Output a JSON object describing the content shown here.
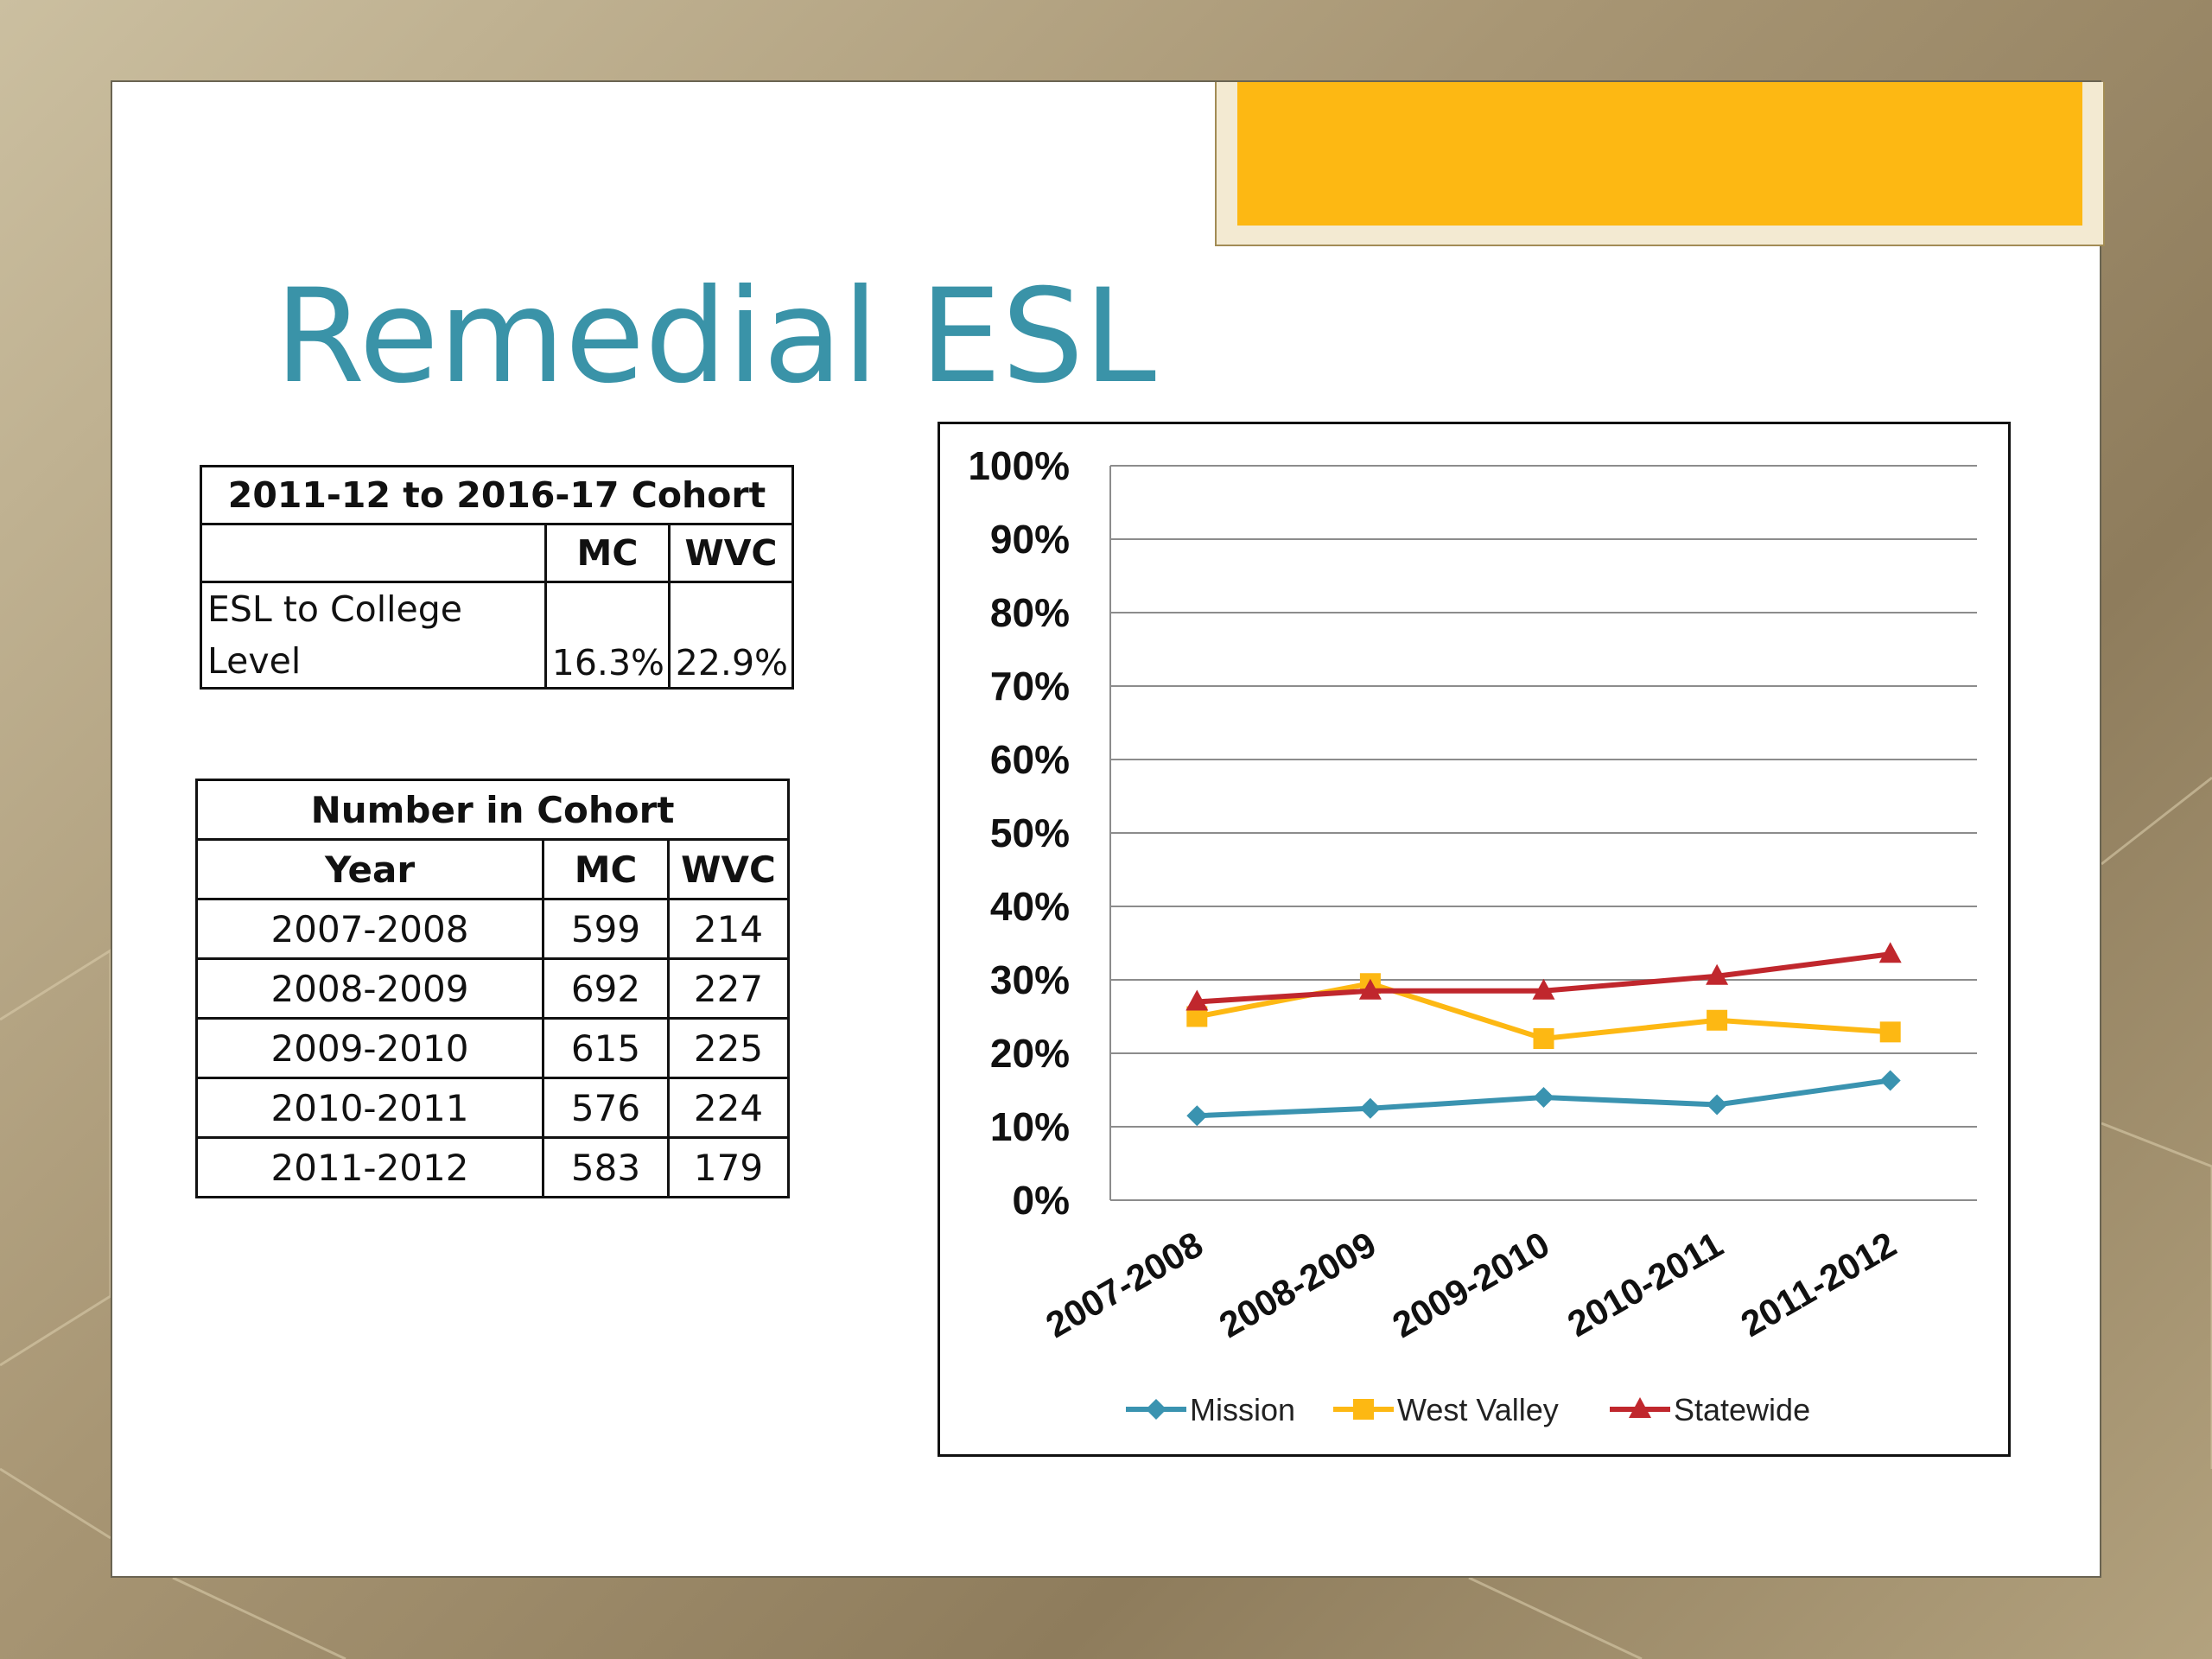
{
  "slide": {
    "title": "Remedial ESL"
  },
  "table_completion": {
    "title": "2011-12 to 2016-17 Cohort",
    "headers": [
      "",
      "MC",
      "WVC"
    ],
    "row_label": "ESL to College Level",
    "mc": "16.3%",
    "wvc": "22.9%"
  },
  "table_cohort": {
    "title": "Number in Cohort",
    "headers": [
      "Year",
      "MC",
      "WVC"
    ],
    "rows": [
      [
        "2007-2008",
        "599",
        "214"
      ],
      [
        "2008-2009",
        "692",
        "227"
      ],
      [
        "2009-2010",
        "615",
        "225"
      ],
      [
        "2010-2011",
        "576",
        "224"
      ],
      [
        "2011-2012",
        "583",
        "179"
      ]
    ]
  },
  "chart_data": {
    "type": "line",
    "x": [
      "2007-2008",
      "2008-2009",
      "2009-2010",
      "2010-2011",
      "2011-2012"
    ],
    "y_ticks": [
      "0%",
      "10%",
      "20%",
      "30%",
      "40%",
      "50%",
      "60%",
      "70%",
      "80%",
      "90%",
      "100%"
    ],
    "ylim": [
      0,
      100
    ],
    "grid": true,
    "legend_position": "bottom",
    "series": [
      {
        "name": "Mission",
        "values": [
          11.5,
          12.5,
          14,
          13,
          16.3
        ],
        "color": "#3a93b0",
        "marker": "diamond"
      },
      {
        "name": "West Valley",
        "values": [
          25,
          29.5,
          22,
          24.5,
          22.9
        ],
        "color": "#fdb813",
        "marker": "square"
      },
      {
        "name": "Statewide",
        "values": [
          27,
          28.5,
          28.5,
          30.5,
          33.5
        ],
        "color": "#c0272d",
        "marker": "triangle"
      }
    ]
  }
}
